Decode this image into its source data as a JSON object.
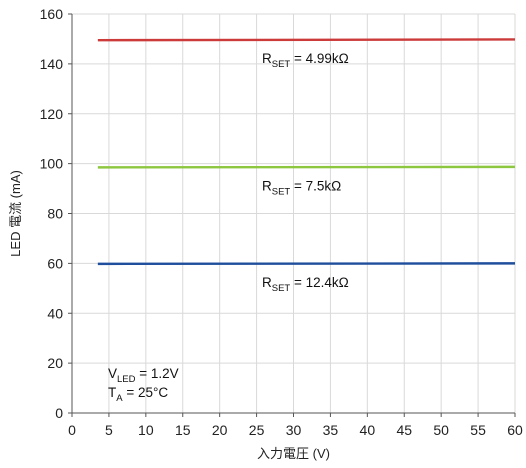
{
  "chart_data": {
    "type": "line",
    "xlabel": "入力電圧 (V)",
    "ylabel": "LED 電流 (mA)",
    "xlim": [
      0,
      60
    ],
    "ylim": [
      0,
      160
    ],
    "xticks": [
      0,
      5,
      10,
      15,
      20,
      25,
      30,
      35,
      40,
      45,
      50,
      55,
      60
    ],
    "xtick_labels": [
      "0",
      "5",
      "10",
      "15",
      "20",
      "25",
      "30",
      "35",
      "40",
      "45",
      "50",
      "55",
      "60"
    ],
    "yticks": [
      0,
      20,
      40,
      60,
      80,
      100,
      120,
      140,
      160
    ],
    "ytick_labels": [
      "0",
      "20",
      "40",
      "60",
      "80",
      "100",
      "120",
      "140",
      "160"
    ],
    "grid": true,
    "series": [
      {
        "color": "#cc3a3a",
        "x": [
          3.5,
          60
        ],
        "y": [
          149.5,
          149.8
        ],
        "label": {
          "main": "R",
          "sub": "SET",
          "rest": " = 4.99kΩ"
        }
      },
      {
        "color": "#8dc63f",
        "x": [
          3.5,
          60
        ],
        "y": [
          98.5,
          98.7
        ],
        "label": {
          "main": "R",
          "sub": "SET",
          "rest": " = 7.5kΩ"
        }
      },
      {
        "color": "#1f4e9c",
        "x": [
          3.5,
          60
        ],
        "y": [
          59.8,
          60.0
        ],
        "label": {
          "main": "R",
          "sub": "SET",
          "rest": " = 12.4kΩ"
        }
      }
    ],
    "conditions": [
      {
        "main": "V",
        "sub": "LED",
        "rest": " = 1.2V"
      },
      {
        "main": "T",
        "sub": "A",
        "rest": " = 25°C"
      }
    ]
  }
}
